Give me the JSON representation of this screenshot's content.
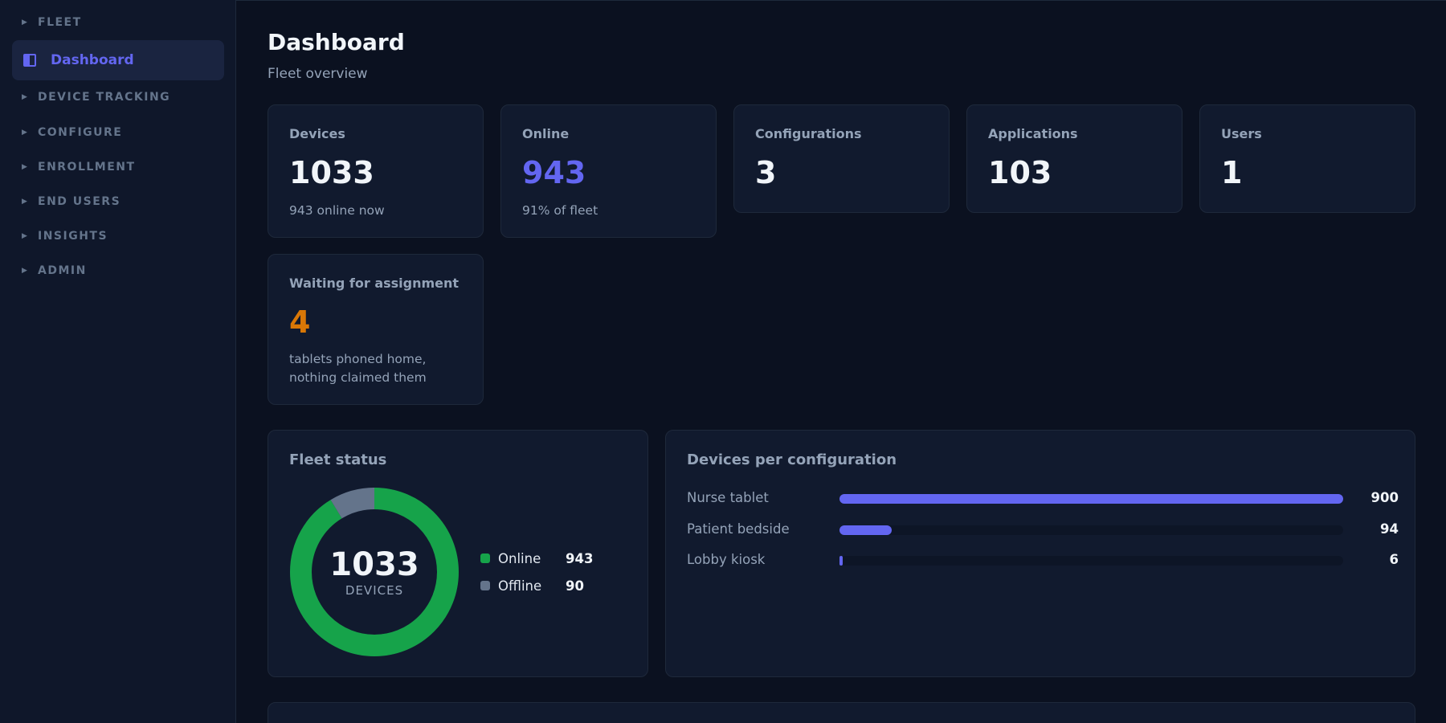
{
  "sidebar": {
    "sections": [
      "FLEET",
      "DEVICE TRACKING",
      "CONFIGURE",
      "ENROLLMENT",
      "END USERS",
      "INSIGHTS",
      "ADMIN"
    ],
    "active_item": {
      "label": "Dashboard",
      "icon": "sidebar-panel-icon"
    }
  },
  "header": {
    "title": "Dashboard",
    "subtitle": "Fleet overview"
  },
  "stats": [
    {
      "label": "Devices",
      "value": "1033",
      "note": "943 online now",
      "color": "#f1f5f9"
    },
    {
      "label": "Online",
      "value": "943",
      "note": "91% of fleet",
      "color": "#6366f1"
    },
    {
      "label": "Configurations",
      "value": "3",
      "color": "#f1f5f9"
    },
    {
      "label": "Applications",
      "value": "103",
      "color": "#f1f5f9"
    },
    {
      "label": "Users",
      "value": "1",
      "color": "#f1f5f9"
    }
  ],
  "waiting": {
    "label": "Waiting for assignment",
    "value": "4",
    "note_line1": "tablets phoned home,",
    "note_line2": "nothing claimed them",
    "color": "#d97706"
  },
  "fleet_status": {
    "title": "Fleet status",
    "total": "1033",
    "total_label": "DEVICES",
    "segments": [
      {
        "label": "Online",
        "value": 943,
        "color": "#16a34a"
      },
      {
        "label": "Offline",
        "value": 90,
        "color": "#64748b"
      }
    ]
  },
  "per_config": {
    "title": "Devices per configuration",
    "max": 900,
    "accent": "#6366f1",
    "rows": [
      {
        "label": "Nurse tablet",
        "value": 900
      },
      {
        "label": "Patient bedside",
        "value": 94
      },
      {
        "label": "Lobby kiosk",
        "value": 6
      }
    ]
  }
}
